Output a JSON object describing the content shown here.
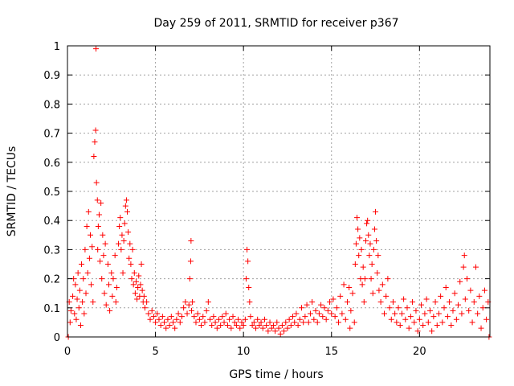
{
  "chart_data": {
    "type": "scatter",
    "title": "Day 259 of 2011, SRMTID for receiver p367",
    "xlabel": "GPS time / hours",
    "ylabel": "SRMTID / TECUs",
    "xlim": [
      0,
      24
    ],
    "ylim": [
      0,
      1
    ],
    "xticks": [
      0,
      5,
      10,
      15,
      20
    ],
    "xtick_labels": [
      "0",
      "5",
      "10",
      "15",
      "20"
    ],
    "yticks": [
      0,
      0.1,
      0.2,
      0.3,
      0.4,
      0.5,
      0.6,
      0.7,
      0.8,
      0.9,
      1
    ],
    "ytick_labels": [
      "0",
      "0.1",
      "0.2",
      "0.3",
      "0.4",
      "0.5",
      "0.6",
      "0.7",
      "0.8",
      "0.9",
      "1"
    ],
    "grid": true,
    "marker": "plus",
    "color": "#ff0000",
    "series": [
      {
        "name": "SRMTID",
        "points": [
          [
            0.05,
            0.0
          ],
          [
            0.1,
            0.12
          ],
          [
            0.15,
            0.05
          ],
          [
            0.2,
            0.09
          ],
          [
            0.3,
            0.14
          ],
          [
            0.35,
            0.2
          ],
          [
            0.4,
            0.08
          ],
          [
            0.45,
            0.18
          ],
          [
            0.5,
            0.06
          ],
          [
            0.55,
            0.13
          ],
          [
            0.6,
            0.22
          ],
          [
            0.65,
            0.1
          ],
          [
            0.7,
            0.16
          ],
          [
            0.75,
            0.04
          ],
          [
            0.8,
            0.25
          ],
          [
            0.85,
            0.12
          ],
          [
            0.9,
            0.2
          ],
          [
            0.95,
            0.08
          ],
          [
            1.0,
            0.3
          ],
          [
            1.05,
            0.15
          ],
          [
            1.1,
            0.38
          ],
          [
            1.15,
            0.22
          ],
          [
            1.2,
            0.43
          ],
          [
            1.25,
            0.27
          ],
          [
            1.3,
            0.35
          ],
          [
            1.35,
            0.18
          ],
          [
            1.4,
            0.31
          ],
          [
            1.45,
            0.12
          ],
          [
            1.5,
            0.62
          ],
          [
            1.55,
            0.67
          ],
          [
            1.6,
            0.71
          ],
          [
            1.62,
            0.99
          ],
          [
            1.65,
            0.53
          ],
          [
            1.7,
            0.47
          ],
          [
            1.72,
            0.3
          ],
          [
            1.75,
            0.38
          ],
          [
            1.8,
            0.42
          ],
          [
            1.85,
            0.26
          ],
          [
            1.9,
            0.46
          ],
          [
            1.95,
            0.2
          ],
          [
            2.0,
            0.35
          ],
          [
            2.05,
            0.28
          ],
          [
            2.1,
            0.15
          ],
          [
            2.15,
            0.32
          ],
          [
            2.2,
            0.11
          ],
          [
            2.3,
            0.25
          ],
          [
            2.35,
            0.18
          ],
          [
            2.4,
            0.09
          ],
          [
            2.5,
            0.22
          ],
          [
            2.55,
            0.14
          ],
          [
            2.6,
            0.2
          ],
          [
            2.7,
            0.28
          ],
          [
            2.75,
            0.12
          ],
          [
            2.8,
            0.17
          ],
          [
            2.9,
            0.32
          ],
          [
            2.95,
            0.38
          ],
          [
            3.0,
            0.41
          ],
          [
            3.05,
            0.3
          ],
          [
            3.1,
            0.35
          ],
          [
            3.15,
            0.22
          ],
          [
            3.2,
            0.33
          ],
          [
            3.25,
            0.39
          ],
          [
            3.3,
            0.45
          ],
          [
            3.35,
            0.47
          ],
          [
            3.4,
            0.43
          ],
          [
            3.45,
            0.36
          ],
          [
            3.5,
            0.27
          ],
          [
            3.55,
            0.32
          ],
          [
            3.6,
            0.25
          ],
          [
            3.65,
            0.2
          ],
          [
            3.7,
            0.3
          ],
          [
            3.75,
            0.18
          ],
          [
            3.8,
            0.22
          ],
          [
            3.85,
            0.15
          ],
          [
            3.9,
            0.19
          ],
          [
            3.95,
            0.13
          ],
          [
            4.0,
            0.17
          ],
          [
            4.05,
            0.21
          ],
          [
            4.1,
            0.14
          ],
          [
            4.15,
            0.18
          ],
          [
            4.2,
            0.25
          ],
          [
            4.25,
            0.16
          ],
          [
            4.3,
            0.12
          ],
          [
            4.35,
            0.14
          ],
          [
            4.4,
            0.1
          ],
          [
            4.5,
            0.12
          ],
          [
            4.6,
            0.08
          ],
          [
            4.7,
            0.06
          ],
          [
            4.8,
            0.09
          ],
          [
            4.9,
            0.07
          ],
          [
            5.0,
            0.05
          ],
          [
            5.1,
            0.08
          ],
          [
            5.2,
            0.06
          ],
          [
            5.3,
            0.04
          ],
          [
            5.4,
            0.07
          ],
          [
            5.5,
            0.05
          ],
          [
            5.6,
            0.03
          ],
          [
            5.7,
            0.06
          ],
          [
            5.8,
            0.04
          ],
          [
            5.9,
            0.07
          ],
          [
            6.0,
            0.05
          ],
          [
            6.1,
            0.03
          ],
          [
            6.2,
            0.06
          ],
          [
            6.3,
            0.08
          ],
          [
            6.4,
            0.05
          ],
          [
            6.5,
            0.07
          ],
          [
            6.6,
            0.1
          ],
          [
            6.7,
            0.12
          ],
          [
            6.8,
            0.08
          ],
          [
            6.9,
            0.11
          ],
          [
            6.95,
            0.2
          ],
          [
            7.0,
            0.26
          ],
          [
            7.02,
            0.33
          ],
          [
            7.05,
            0.09
          ],
          [
            7.1,
            0.12
          ],
          [
            7.2,
            0.07
          ],
          [
            7.3,
            0.05
          ],
          [
            7.4,
            0.08
          ],
          [
            7.5,
            0.06
          ],
          [
            7.6,
            0.04
          ],
          [
            7.7,
            0.07
          ],
          [
            7.8,
            0.05
          ],
          [
            7.9,
            0.09
          ],
          [
            8.0,
            0.12
          ],
          [
            8.1,
            0.06
          ],
          [
            8.2,
            0.04
          ],
          [
            8.3,
            0.07
          ],
          [
            8.4,
            0.05
          ],
          [
            8.5,
            0.03
          ],
          [
            8.6,
            0.06
          ],
          [
            8.7,
            0.04
          ],
          [
            8.8,
            0.07
          ],
          [
            8.9,
            0.05
          ],
          [
            9.0,
            0.08
          ],
          [
            9.1,
            0.04
          ],
          [
            9.2,
            0.06
          ],
          [
            9.3,
            0.03
          ],
          [
            9.4,
            0.07
          ],
          [
            9.5,
            0.05
          ],
          [
            9.6,
            0.04
          ],
          [
            9.7,
            0.06
          ],
          [
            9.8,
            0.03
          ],
          [
            9.9,
            0.05
          ],
          [
            10.0,
            0.04
          ],
          [
            10.1,
            0.06
          ],
          [
            10.15,
            0.2
          ],
          [
            10.2,
            0.3
          ],
          [
            10.25,
            0.26
          ],
          [
            10.3,
            0.17
          ],
          [
            10.35,
            0.12
          ],
          [
            10.4,
            0.07
          ],
          [
            10.5,
            0.04
          ],
          [
            10.6,
            0.05
          ],
          [
            10.7,
            0.03
          ],
          [
            10.8,
            0.06
          ],
          [
            10.9,
            0.04
          ],
          [
            11.0,
            0.05
          ],
          [
            11.1,
            0.03
          ],
          [
            11.2,
            0.06
          ],
          [
            11.3,
            0.04
          ],
          [
            11.4,
            0.02
          ],
          [
            11.5,
            0.05
          ],
          [
            11.6,
            0.03
          ],
          [
            11.7,
            0.04
          ],
          [
            11.8,
            0.02
          ],
          [
            11.9,
            0.05
          ],
          [
            12.0,
            0.03
          ],
          [
            12.1,
            0.01
          ],
          [
            12.2,
            0.04
          ],
          [
            12.3,
            0.02
          ],
          [
            12.4,
            0.05
          ],
          [
            12.5,
            0.03
          ],
          [
            12.6,
            0.06
          ],
          [
            12.7,
            0.04
          ],
          [
            12.8,
            0.07
          ],
          [
            12.9,
            0.05
          ],
          [
            13.0,
            0.08
          ],
          [
            13.1,
            0.04
          ],
          [
            13.2,
            0.06
          ],
          [
            13.3,
            0.1
          ],
          [
            13.4,
            0.05
          ],
          [
            13.5,
            0.07
          ],
          [
            13.6,
            0.11
          ],
          [
            13.7,
            0.05
          ],
          [
            13.8,
            0.08
          ],
          [
            13.9,
            0.12
          ],
          [
            14.0,
            0.06
          ],
          [
            14.1,
            0.09
          ],
          [
            14.2,
            0.05
          ],
          [
            14.3,
            0.08
          ],
          [
            14.4,
            0.11
          ],
          [
            14.5,
            0.07
          ],
          [
            14.6,
            0.1
          ],
          [
            14.7,
            0.06
          ],
          [
            14.8,
            0.09
          ],
          [
            14.9,
            0.12
          ],
          [
            15.0,
            0.08
          ],
          [
            15.1,
            0.13
          ],
          [
            15.2,
            0.07
          ],
          [
            15.3,
            0.1
          ],
          [
            15.4,
            0.05
          ],
          [
            15.5,
            0.14
          ],
          [
            15.6,
            0.08
          ],
          [
            15.7,
            0.18
          ],
          [
            15.8,
            0.06
          ],
          [
            15.9,
            0.12
          ],
          [
            16.0,
            0.17
          ],
          [
            16.05,
            0.03
          ],
          [
            16.1,
            0.09
          ],
          [
            16.2,
            0.15
          ],
          [
            16.3,
            0.05
          ],
          [
            16.35,
            0.25
          ],
          [
            16.4,
            0.32
          ],
          [
            16.45,
            0.41
          ],
          [
            16.5,
            0.37
          ],
          [
            16.55,
            0.28
          ],
          [
            16.6,
            0.34
          ],
          [
            16.65,
            0.2
          ],
          [
            16.7,
            0.3
          ],
          [
            16.75,
            0.18
          ],
          [
            16.8,
            0.24
          ],
          [
            16.85,
            0.12
          ],
          [
            16.9,
            0.2
          ],
          [
            16.95,
            0.33
          ],
          [
            17.0,
            0.39
          ],
          [
            17.05,
            0.4
          ],
          [
            17.1,
            0.35
          ],
          [
            17.15,
            0.28
          ],
          [
            17.2,
            0.32
          ],
          [
            17.25,
            0.2
          ],
          [
            17.3,
            0.25
          ],
          [
            17.35,
            0.15
          ],
          [
            17.4,
            0.3
          ],
          [
            17.45,
            0.37
          ],
          [
            17.5,
            0.43
          ],
          [
            17.55,
            0.33
          ],
          [
            17.6,
            0.22
          ],
          [
            17.65,
            0.28
          ],
          [
            17.7,
            0.16
          ],
          [
            17.8,
            0.12
          ],
          [
            17.9,
            0.18
          ],
          [
            18.0,
            0.08
          ],
          [
            18.1,
            0.14
          ],
          [
            18.2,
            0.2
          ],
          [
            18.3,
            0.1
          ],
          [
            18.4,
            0.06
          ],
          [
            18.5,
            0.12
          ],
          [
            18.6,
            0.08
          ],
          [
            18.7,
            0.05
          ],
          [
            18.8,
            0.1
          ],
          [
            18.9,
            0.04
          ],
          [
            19.0,
            0.08
          ],
          [
            19.1,
            0.13
          ],
          [
            19.2,
            0.06
          ],
          [
            19.3,
            0.1
          ],
          [
            19.4,
            0.03
          ],
          [
            19.5,
            0.07
          ],
          [
            19.6,
            0.12
          ],
          [
            19.7,
            0.05
          ],
          [
            19.8,
            0.09
          ],
          [
            19.9,
            0.02
          ],
          [
            20.0,
            0.06
          ],
          [
            20.1,
            0.11
          ],
          [
            20.2,
            0.04
          ],
          [
            20.3,
            0.08
          ],
          [
            20.4,
            0.13
          ],
          [
            20.5,
            0.05
          ],
          [
            20.6,
            0.09
          ],
          [
            20.7,
            0.02
          ],
          [
            20.8,
            0.07
          ],
          [
            20.9,
            0.12
          ],
          [
            21.0,
            0.04
          ],
          [
            21.1,
            0.08
          ],
          [
            21.2,
            0.14
          ],
          [
            21.3,
            0.05
          ],
          [
            21.4,
            0.1
          ],
          [
            21.5,
            0.17
          ],
          [
            21.6,
            0.07
          ],
          [
            21.7,
            0.12
          ],
          [
            21.8,
            0.04
          ],
          [
            21.9,
            0.09
          ],
          [
            22.0,
            0.15
          ],
          [
            22.1,
            0.06
          ],
          [
            22.2,
            0.11
          ],
          [
            22.3,
            0.19
          ],
          [
            22.4,
            0.08
          ],
          [
            22.5,
            0.24
          ],
          [
            22.55,
            0.28
          ],
          [
            22.6,
            0.13
          ],
          [
            22.7,
            0.2
          ],
          [
            22.8,
            0.09
          ],
          [
            22.9,
            0.16
          ],
          [
            23.0,
            0.05
          ],
          [
            23.1,
            0.12
          ],
          [
            23.2,
            0.24
          ],
          [
            23.3,
            0.08
          ],
          [
            23.4,
            0.14
          ],
          [
            23.5,
            0.03
          ],
          [
            23.6,
            0.1
          ],
          [
            23.7,
            0.16
          ],
          [
            23.8,
            0.06
          ],
          [
            23.9,
            0.12
          ],
          [
            23.95,
            0.0
          ]
        ]
      }
    ]
  }
}
